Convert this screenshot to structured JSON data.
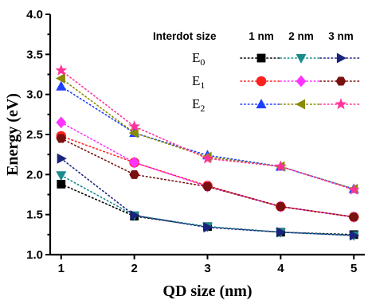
{
  "chart_data": {
    "type": "scatter",
    "title": "",
    "xlabel": "QD size (nm)",
    "ylabel": "Energy (eV)",
    "xlim": [
      0.85,
      5.15
    ],
    "ylim": [
      1.0,
      4.0
    ],
    "xticks": [
      1,
      2,
      3,
      4,
      5
    ],
    "yticks": [
      1.0,
      1.5,
      2.0,
      2.5,
      3.0,
      3.5,
      4.0
    ],
    "ytick_labels": [
      "1.0",
      "1.5",
      "2.0",
      "2.5",
      "3.0",
      "3.5",
      "4.0"
    ],
    "x": [
      1,
      2,
      3,
      4,
      5
    ],
    "grid": false,
    "legend": {
      "placement": "top-right",
      "header": "Interdot size",
      "columns": [
        "1 nm",
        "2 nm",
        "3 nm"
      ],
      "rows": [
        {
          "base": "E",
          "sub": "0"
        },
        {
          "base": "E",
          "sub": "1"
        },
        {
          "base": "E",
          "sub": "2"
        }
      ]
    },
    "series": [
      {
        "level": "E0",
        "interdot": "1 nm",
        "marker": "square",
        "color": "#000000",
        "values": [
          1.88,
          1.48,
          1.35,
          1.28,
          1.25
        ]
      },
      {
        "level": "E0",
        "interdot": "2 nm",
        "marker": "triangle-down",
        "color": "#1a8a8a",
        "values": [
          1.99,
          1.49,
          1.35,
          1.28,
          1.24
        ]
      },
      {
        "level": "E0",
        "interdot": "3 nm",
        "marker": "triangle-right",
        "color": "#1a237e",
        "values": [
          2.2,
          1.49,
          1.34,
          1.28,
          1.24
        ]
      },
      {
        "level": "E1",
        "interdot": "1 nm",
        "marker": "circle",
        "color": "#ff2020",
        "values": [
          2.48,
          2.15,
          1.86,
          1.6,
          1.47
        ]
      },
      {
        "level": "E1",
        "interdot": "2 nm",
        "marker": "diamond",
        "color": "#ff33ff",
        "values": [
          2.65,
          2.15,
          1.85,
          1.6,
          1.47
        ]
      },
      {
        "level": "E1",
        "interdot": "3 nm",
        "marker": "hexagon",
        "color": "#7a1010",
        "values": [
          2.45,
          2.0,
          1.85,
          1.6,
          1.47
        ]
      },
      {
        "level": "E2",
        "interdot": "1 nm",
        "marker": "triangle-up",
        "color": "#1f3fff",
        "values": [
          3.1,
          2.52,
          2.24,
          2.1,
          1.82
        ]
      },
      {
        "level": "E2",
        "interdot": "2 nm",
        "marker": "triangle-left",
        "color": "#8a8a00",
        "values": [
          3.2,
          2.52,
          2.22,
          2.1,
          1.82
        ]
      },
      {
        "level": "E2",
        "interdot": "3 nm",
        "marker": "star",
        "color": "#ff3399",
        "values": [
          3.3,
          2.6,
          2.2,
          2.1,
          1.81
        ]
      }
    ]
  }
}
